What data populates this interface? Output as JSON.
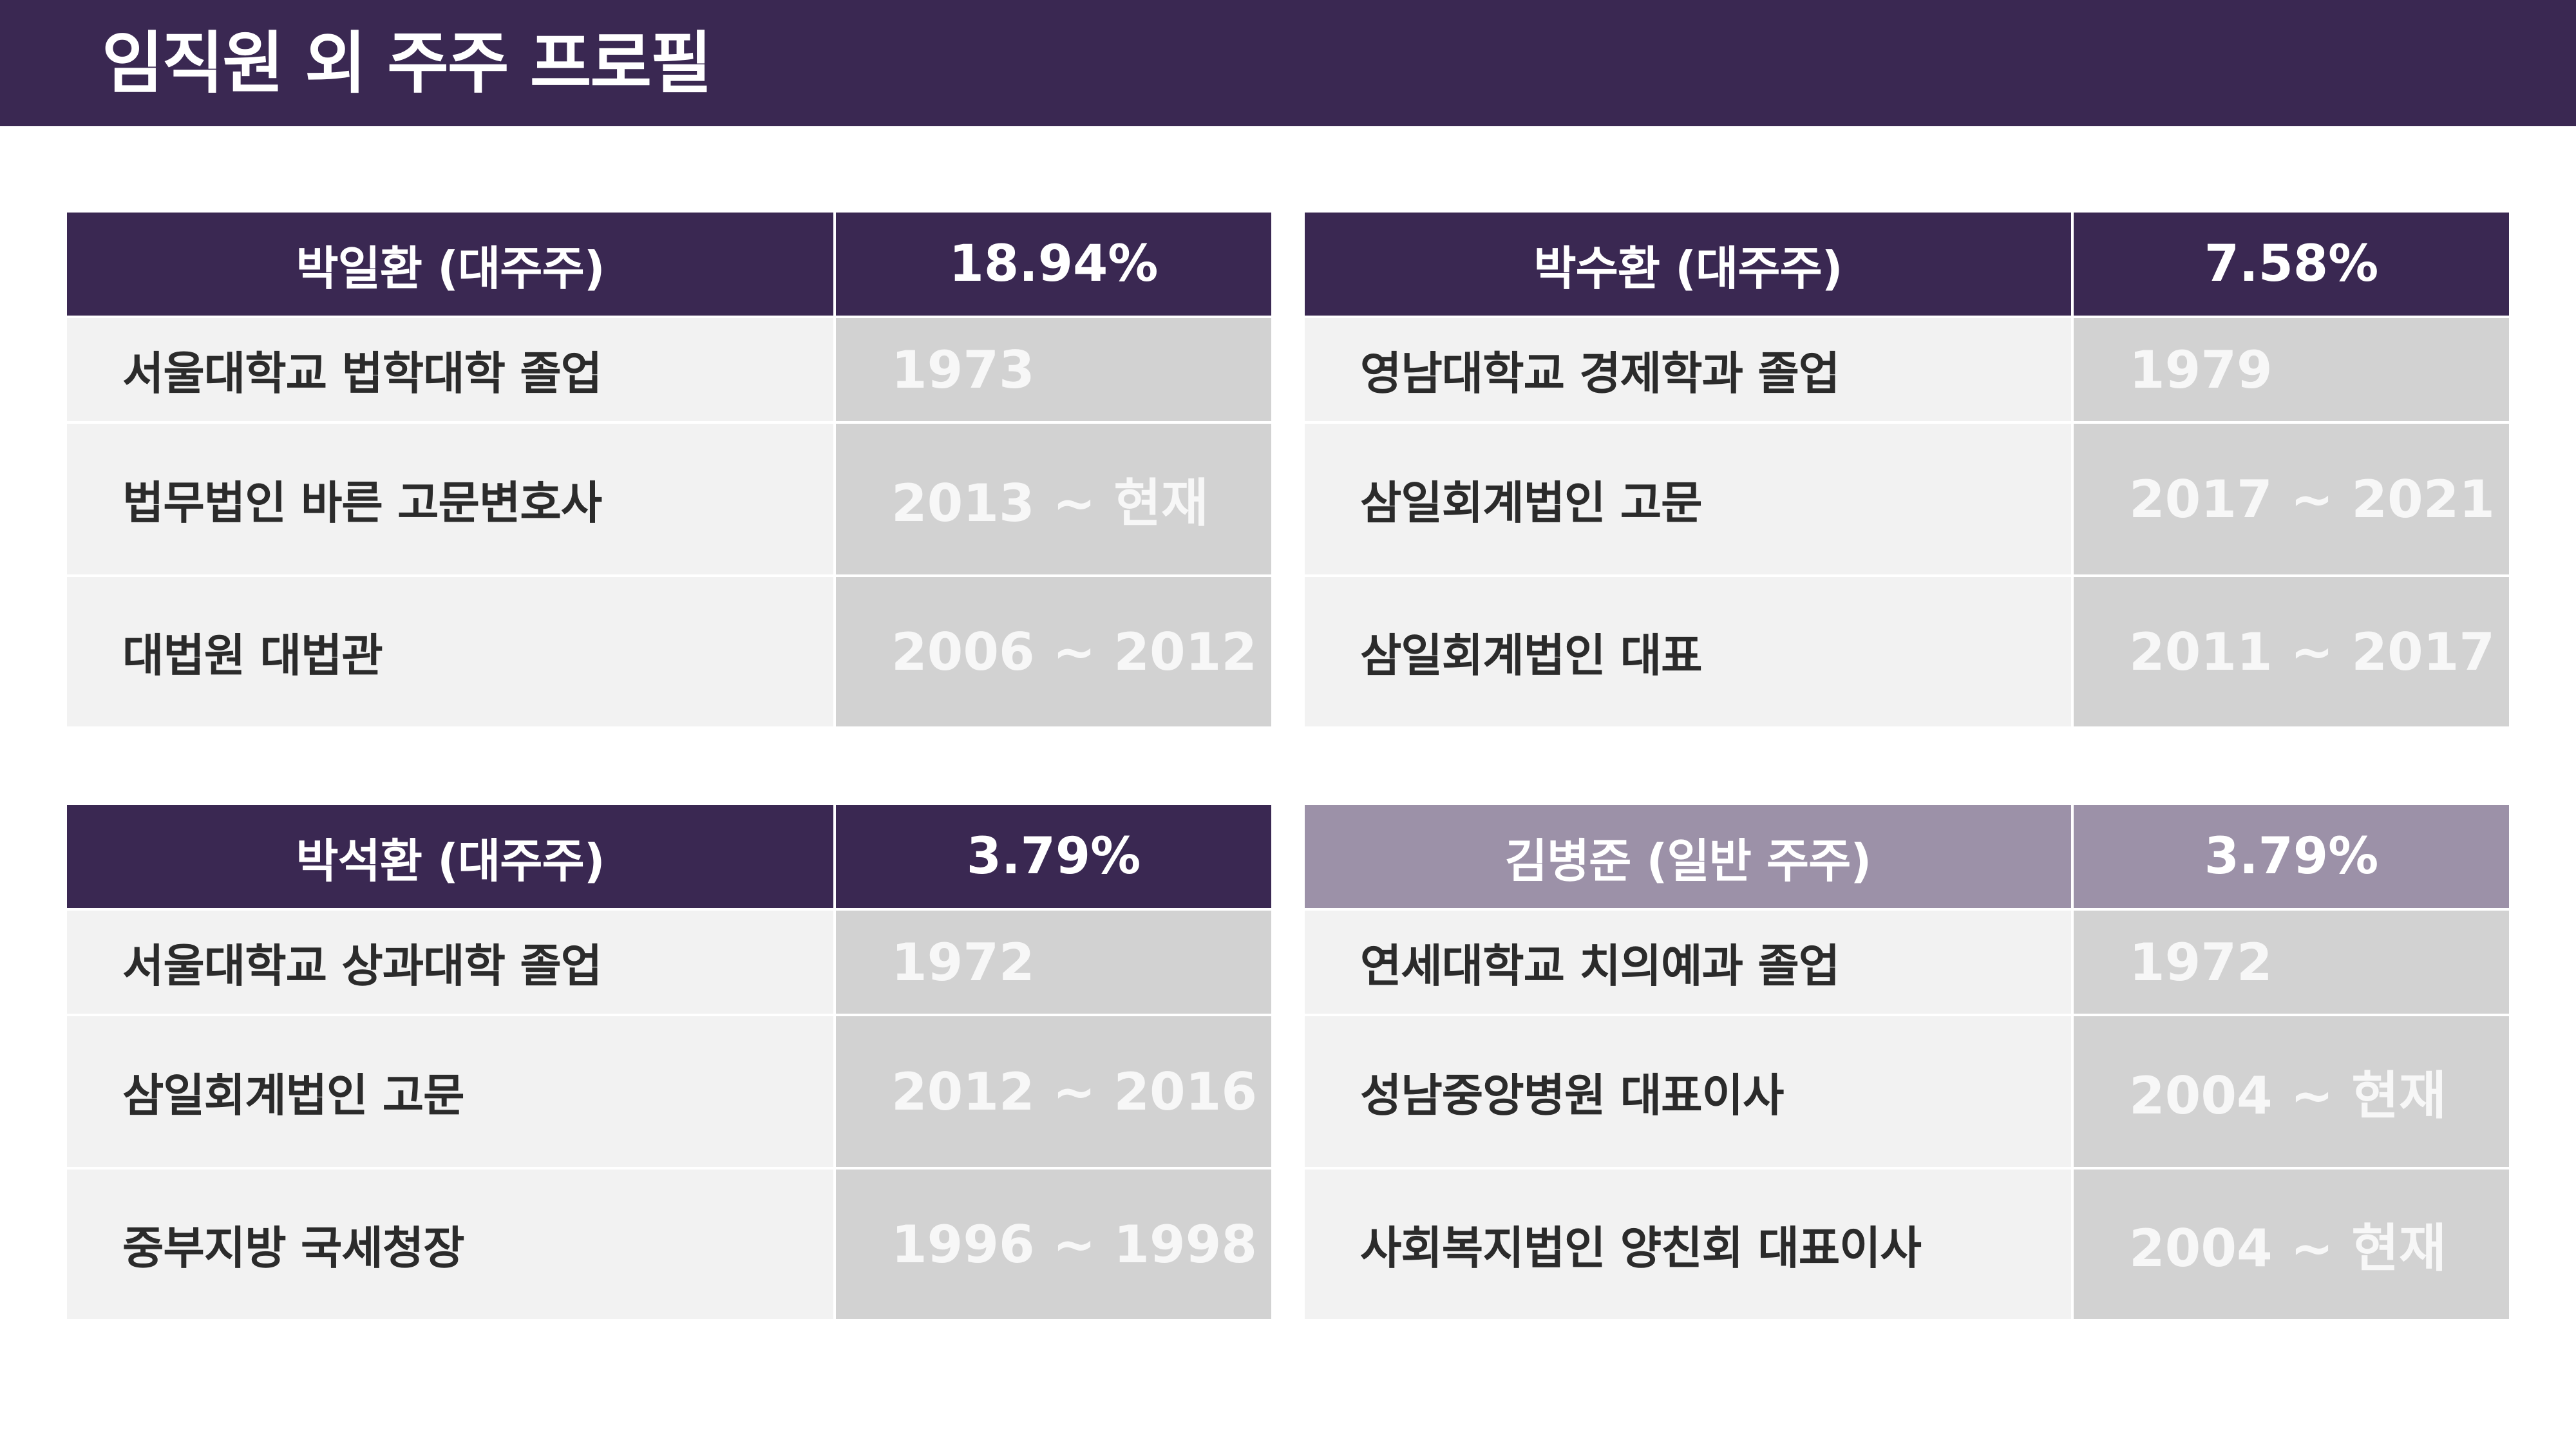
{
  "title": "임직원 외 주주 프로필",
  "shareholders": [
    {
      "name": "박일환 (대주주)",
      "share": "18.94%",
      "rows": [
        {
          "label": "서울대학교 법학대학 졸업",
          "period": "1973"
        },
        {
          "label": "법무법인 바른 고문변호사",
          "period": "2013 ~ 현재"
        },
        {
          "label": "대법원 대법관",
          "period": "2006 ~ 2012"
        }
      ]
    },
    {
      "name": "박수환 (대주주)",
      "share": "7.58%",
      "rows": [
        {
          "label": "영남대학교 경제학과 졸업",
          "period": "1979"
        },
        {
          "label": "삼일회계법인 고문",
          "period": "2017 ~ 2021"
        },
        {
          "label": "삼일회계법인 대표",
          "period": "2011 ~ 2017"
        }
      ]
    },
    {
      "name": "박석환 (대주주)",
      "share": "3.79%",
      "rows": [
        {
          "label": "서울대학교 상과대학 졸업",
          "period": "1972"
        },
        {
          "label": "삼일회계법인 고문",
          "period": "2012 ~ 2016"
        },
        {
          "label": "중부지방 국세청장",
          "period": "1996 ~ 1998"
        }
      ]
    },
    {
      "name": "김병준 (일반 주주)",
      "share": "3.79%",
      "rows": [
        {
          "label": "연세대학교 치의예과 졸업",
          "period": "1972"
        },
        {
          "label": "성남중앙병원 대표이사",
          "period": "2004 ~ 현재"
        },
        {
          "label": "사회복지법인 양친회 대표이사",
          "period": "2004 ~ 현재"
        }
      ]
    }
  ],
  "colors": {
    "header_bg": "#3a2852",
    "major_header": "#3a2852",
    "minor_header": "#9c91a8",
    "label_cell": "#f2f2f2",
    "period_cell": "#d2d2d2"
  }
}
